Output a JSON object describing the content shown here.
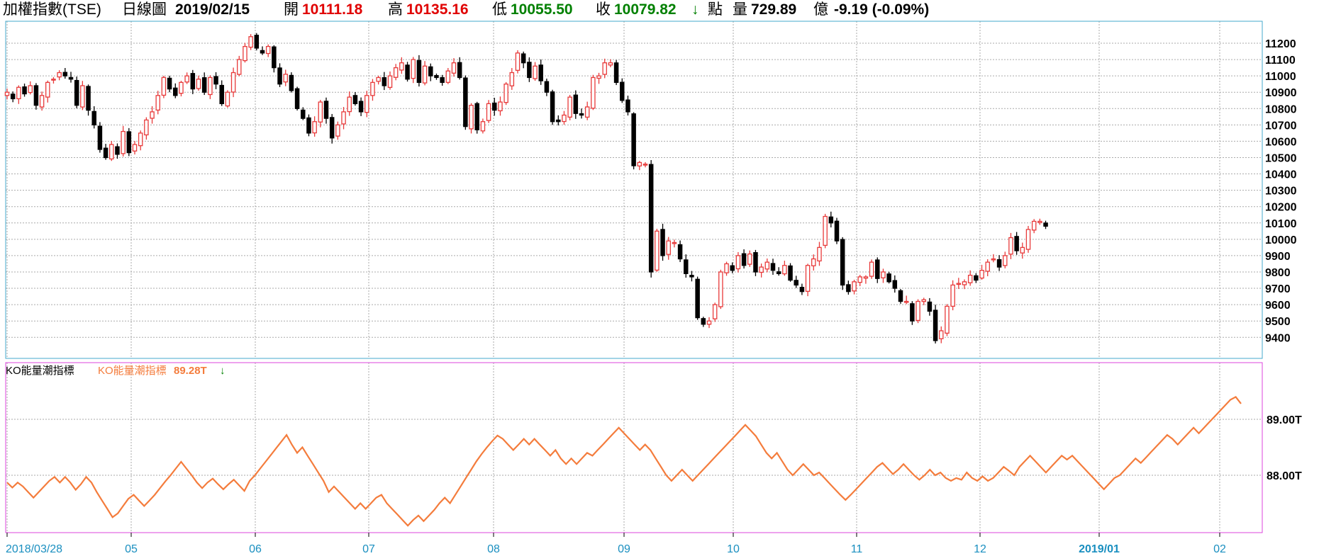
{
  "header": {
    "title": "加權指數(TSE)",
    "period": "日線圖",
    "date": "2019/02/15",
    "open_label": "開",
    "open": "10111.18",
    "high_label": "高",
    "high": "10135.16",
    "low_label": "低",
    "low": "10055.50",
    "close_label": "收",
    "close": "10079.82",
    "close_arrow": "↓",
    "points_label": "點",
    "volume_label": "量",
    "volume": "729.89",
    "volume_unit": "億",
    "change": "-9.19 (-0.09%)"
  },
  "indicator": {
    "name": "KO能量潮指標",
    "series_name": "KO能量潮指標",
    "value": "89.28T",
    "arrow": "↓"
  },
  "colors": {
    "up": "#e83a3a",
    "down": "#000000",
    "line": "#f47c3c",
    "price_frame": "#44aacc",
    "indicator_frame": "#dd44dd",
    "axis_text": "#1a8fc0",
    "grid": "#aaaaaa"
  },
  "chart_data": [
    {
      "type": "candlestick",
      "title": "加權指數(TSE)",
      "ylim": [
        9300,
        11300
      ],
      "y_ticks": [
        9400,
        9500,
        9600,
        9700,
        9800,
        9900,
        10000,
        10100,
        10200,
        10300,
        10400,
        10500,
        10600,
        10700,
        10800,
        10900,
        11000,
        11100,
        11200
      ],
      "x_ticks": [
        "2018/03/28",
        "05",
        "06",
        "07",
        "08",
        "09",
        "10",
        "11",
        "12",
        "2019/01",
        "02"
      ],
      "grid": true,
      "close": [
        10900,
        10860,
        10930,
        10890,
        10940,
        10820,
        10880,
        10960,
        10980,
        11020,
        11000,
        10980,
        10820,
        10940,
        10790,
        10700,
        10550,
        10500,
        10580,
        10520,
        10660,
        10530,
        10580,
        10650,
        10730,
        10780,
        10880,
        10990,
        10920,
        10880,
        10960,
        11000,
        10920,
        10980,
        10900,
        10990,
        10950,
        10830,
        10900,
        11020,
        11100,
        11180,
        11240,
        11170,
        11140,
        11180,
        11050,
        10950,
        11010,
        10910,
        10800,
        10740,
        10650,
        10720,
        10840,
        10740,
        10620,
        10700,
        10780,
        10870,
        10830,
        10780,
        10880,
        10960,
        10990,
        10940,
        11000,
        11050,
        11080,
        10980,
        11100,
        10960,
        11060,
        11000,
        10990,
        10960,
        11030,
        11080,
        10990,
        10690,
        10820,
        10670,
        10720,
        10830,
        10790,
        10840,
        10950,
        11020,
        11140,
        11080,
        10990,
        11060,
        10970,
        10900,
        10720,
        10720,
        10760,
        10870,
        10770,
        10760,
        10810,
        10990,
        11000,
        11080,
        11080,
        10960,
        10850,
        10780,
        10450,
        10470,
        10460,
        9800,
        10050,
        9900,
        9990,
        9980,
        9880,
        9790,
        9770,
        9520,
        9480,
        9500,
        9600,
        9800,
        9850,
        9810,
        9900,
        9840,
        9910,
        9800,
        9830,
        9860,
        9810,
        9790,
        9840,
        9750,
        9720,
        9680,
        9840,
        9880,
        9950,
        10140,
        10100,
        9990,
        9720,
        9680,
        9740,
        9770,
        9770,
        9860,
        9760,
        9800,
        9740,
        9700,
        9620,
        9620,
        9500,
        9620,
        9630,
        9560,
        9380,
        9440,
        9590,
        9720,
        9730,
        9740,
        9780,
        9750,
        9810,
        9860,
        9880,
        9830,
        9900,
        10010,
        9930,
        9950,
        10060,
        10110,
        10110,
        10080
      ],
      "volume_unit_label": "億"
    },
    {
      "type": "line",
      "title": "KO能量潮指標",
      "series": [
        {
          "name": "KO能量潮指標",
          "values": [
            87.87,
            87.78,
            87.87,
            87.8,
            87.7,
            87.6,
            87.7,
            87.8,
            87.9,
            87.97,
            87.87,
            87.97,
            87.87,
            87.74,
            87.84,
            87.97,
            87.87,
            87.7,
            87.55,
            87.4,
            87.25,
            87.32,
            87.45,
            87.58,
            87.65,
            87.55,
            87.45,
            87.55,
            87.65,
            87.77,
            87.89,
            88.0,
            88.12,
            88.24,
            88.12,
            88.0,
            87.87,
            87.77,
            87.87,
            87.94,
            87.84,
            87.75,
            87.84,
            87.92,
            87.82,
            87.72,
            87.9,
            88.0,
            88.12,
            88.24,
            88.36,
            88.48,
            88.6,
            88.72,
            88.55,
            88.4,
            88.5,
            88.35,
            88.2,
            88.05,
            87.9,
            87.7,
            87.8,
            87.7,
            87.6,
            87.5,
            87.4,
            87.5,
            87.4,
            87.5,
            87.6,
            87.65,
            87.5,
            87.4,
            87.3,
            87.2,
            87.1,
            87.2,
            87.28,
            87.18,
            87.28,
            87.38,
            87.5,
            87.6,
            87.5,
            87.65,
            87.8,
            87.95,
            88.1,
            88.25,
            88.38,
            88.5,
            88.61,
            88.71,
            88.65,
            88.55,
            88.45,
            88.55,
            88.65,
            88.55,
            88.65,
            88.55,
            88.45,
            88.35,
            88.45,
            88.3,
            88.2,
            88.3,
            88.2,
            88.3,
            88.4,
            88.35,
            88.45,
            88.55,
            88.65,
            88.75,
            88.85,
            88.75,
            88.65,
            88.55,
            88.45,
            88.55,
            88.45,
            88.3,
            88.15,
            88.0,
            87.9,
            88.0,
            88.1,
            88.0,
            87.9,
            88.0,
            88.1,
            88.2,
            88.3,
            88.4,
            88.5,
            88.6,
            88.7,
            88.8,
            88.9,
            88.8,
            88.7,
            88.55,
            88.4,
            88.3,
            88.4,
            88.25,
            88.1,
            88.0,
            88.1,
            88.2,
            88.1,
            88.0,
            88.05,
            87.95,
            87.85,
            87.75,
            87.65,
            87.56,
            87.65,
            87.75,
            87.85,
            87.95,
            88.05,
            88.15,
            88.22,
            88.12,
            88.02,
            88.1,
            88.2,
            88.1,
            88.0,
            87.92,
            88.0,
            88.1,
            88.0,
            88.05,
            87.95,
            87.9,
            87.95,
            87.92,
            88.05,
            87.95,
            87.9,
            87.98,
            87.9,
            87.95,
            88.05,
            88.15,
            88.08,
            88.0,
            88.15,
            88.25,
            88.35,
            88.25,
            88.15,
            88.05,
            88.15,
            88.25,
            88.35,
            88.28,
            88.35,
            88.25,
            88.15,
            88.05,
            87.95,
            87.85,
            87.75,
            87.85,
            87.95,
            88.0,
            88.1,
            88.2,
            88.3,
            88.22,
            88.32,
            88.42,
            88.52,
            88.62,
            88.72,
            88.65,
            88.55,
            88.65,
            88.75,
            88.85,
            88.75,
            88.85,
            88.95,
            89.05,
            89.15,
            89.25,
            89.35,
            89.4,
            89.28
          ]
        }
      ],
      "y_ticks": [
        "88.00T",
        "89.00T"
      ],
      "ylim": [
        86.9,
        89.75
      ]
    }
  ]
}
